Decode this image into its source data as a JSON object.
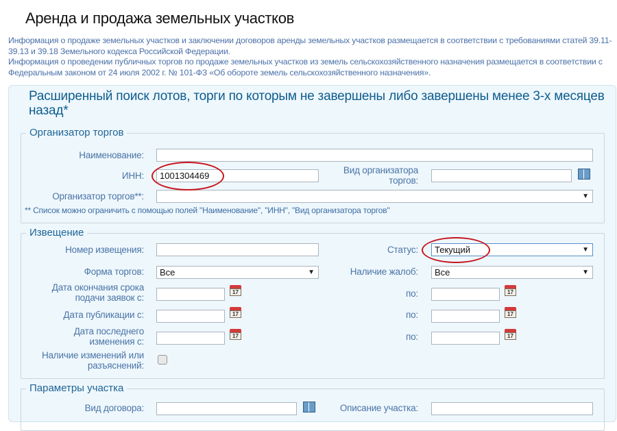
{
  "page": {
    "title": "Аренда и продажа земельных участков",
    "info": [
      "Информация о продаже земельных участков и заключении договоров аренды земельных участков размещается в соответствии с требованиями статей 39.11-39.13 и 39.18 Земельного кодекса Российской Федерации.",
      "Информация о проведении публичных торгов по продаже земельных участков из земель сельскохозяйственного назначения размещается в соответствии с Федеральным законом от 24 июля 2002 г. № 101-ФЗ «Об обороте земель сельскохозяйственного назначения»."
    ]
  },
  "search": {
    "title": "Расширенный поиск лотов, торги по которым не завершены либо завершены менее 3-х месяцев назад*"
  },
  "organizer": {
    "legend": "Организатор торгов",
    "name_label": "Наименование:",
    "name_value": "",
    "inn_label": "ИНН:",
    "inn_value": "1001304469",
    "type_label": "Вид организатора торгов:",
    "type_value": "",
    "org_label": "Организатор торгов**:",
    "org_value": "",
    "note": "** Список можно ограничить с помощью полей \"Наименование\", \"ИНН\", \"Вид организатора торгов\""
  },
  "notice": {
    "legend": "Извещение",
    "number_label": "Номер извещения:",
    "status_label": "Статус:",
    "status_value": "Текущий",
    "form_label": "Форма торгов:",
    "form_value": "Все",
    "complaints_label": "Наличие жалоб:",
    "complaints_value": "Все",
    "deadline_label": "Дата окончания срока подачи заявок с:",
    "pub_label": "Дата публикации с:",
    "changed_label": "Дата последнего изменения с:",
    "to_label": "по:",
    "changes_label": "Наличие изменений или разъяснений:",
    "changes_checked": false,
    "calendar_day": "17"
  },
  "plot": {
    "legend": "Параметры участка",
    "contract_label": "Вид договора:",
    "desc_label": "Описание участка:"
  },
  "colors": {
    "highlight": "#c9141c",
    "panel": "#eef7fc",
    "heading": "#0d5c8e"
  }
}
